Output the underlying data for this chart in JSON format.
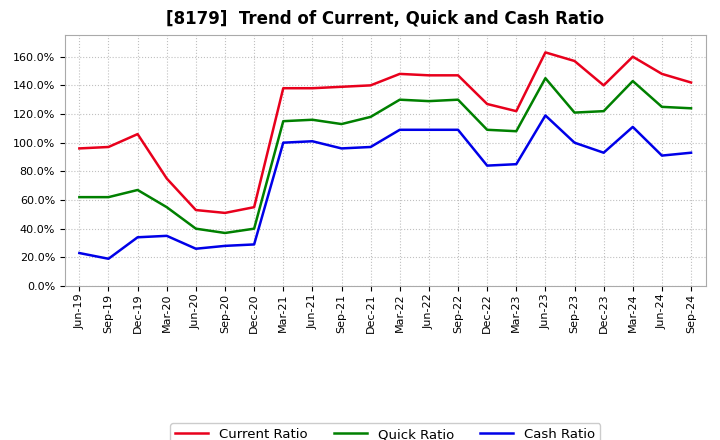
{
  "title": "[8179]  Trend of Current, Quick and Cash Ratio",
  "labels": [
    "Jun-19",
    "Sep-19",
    "Dec-19",
    "Mar-20",
    "Jun-20",
    "Sep-20",
    "Dec-20",
    "Mar-21",
    "Jun-21",
    "Sep-21",
    "Dec-21",
    "Mar-22",
    "Jun-22",
    "Sep-22",
    "Dec-22",
    "Mar-23",
    "Jun-23",
    "Sep-23",
    "Dec-23",
    "Mar-24",
    "Jun-24",
    "Sep-24"
  ],
  "current_ratio": [
    96,
    97,
    106,
    75,
    53,
    51,
    55,
    138,
    138,
    139,
    140,
    148,
    147,
    147,
    127,
    122,
    163,
    157,
    140,
    160,
    148,
    142
  ],
  "quick_ratio": [
    62,
    62,
    67,
    55,
    40,
    37,
    40,
    115,
    116,
    113,
    118,
    130,
    129,
    130,
    109,
    108,
    145,
    121,
    122,
    143,
    125,
    124
  ],
  "cash_ratio": [
    23,
    19,
    34,
    35,
    26,
    28,
    29,
    100,
    101,
    96,
    97,
    109,
    109,
    109,
    84,
    85,
    119,
    100,
    93,
    111,
    91,
    93
  ],
  "current_color": "#e8001c",
  "quick_color": "#008000",
  "cash_color": "#0000e8",
  "background_color": "#ffffff",
  "plot_bg_color": "#ffffff",
  "grid_color": "#c0c0c0",
  "ylim": [
    0,
    175
  ],
  "yticks": [
    0,
    20,
    40,
    60,
    80,
    100,
    120,
    140,
    160
  ],
  "title_fontsize": 12,
  "legend_fontsize": 9.5,
  "tick_fontsize": 8,
  "line_width": 1.8
}
